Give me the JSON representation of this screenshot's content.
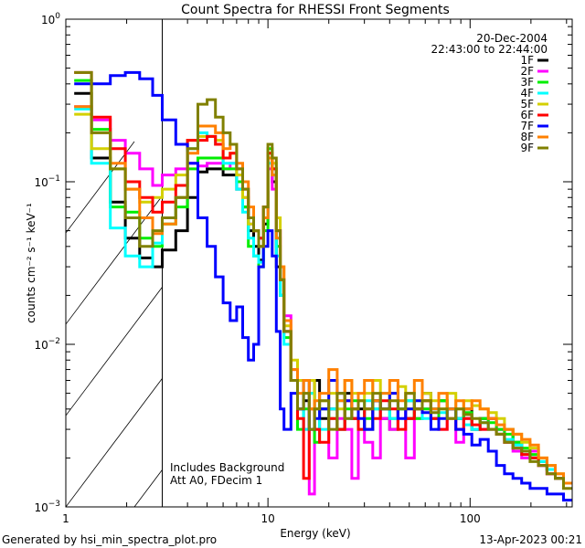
{
  "chart_data": {
    "type": "line",
    "step": true,
    "title": "Count Spectra for RHESSI Front Segments",
    "xlabel": "Energy (keV)",
    "ylabel": "counts cm⁻² s⁻¹ keV⁻¹",
    "xscale": "log",
    "yscale": "log",
    "xlim": [
      1,
      320
    ],
    "ylim": [
      0.001,
      1
    ],
    "x_ticks": [
      {
        "value": 1,
        "label": "1"
      },
      {
        "value": 10,
        "label": "10"
      },
      {
        "value": 100,
        "label": "100"
      }
    ],
    "y_ticks": [
      {
        "value": 1,
        "base": "10",
        "exp": "0"
      },
      {
        "value": 0.1,
        "base": "10",
        "exp": "−1"
      },
      {
        "value": 0.01,
        "base": "10",
        "exp": "−2"
      },
      {
        "value": 0.001,
        "base": "10",
        "exp": "−3"
      }
    ],
    "shaded_region_keV": [
      1,
      3
    ],
    "legend": {
      "placement": "top-right",
      "date": "20-Dec-2004",
      "time_range": "22:43:00 to 22:44:00"
    },
    "annotations": [
      "Includes Background",
      "Att A0, FDecim 1"
    ],
    "bin_edges_keV": [
      1.1,
      1.34,
      1.66,
      1.97,
      2.32,
      2.69,
      3.0,
      3.5,
      4,
      4.5,
      5,
      5.5,
      6,
      6.5,
      7,
      7.5,
      8,
      8.5,
      9,
      9.5,
      10,
      10.5,
      11,
      11.5,
      12,
      13,
      14,
      15,
      16,
      17,
      18,
      20,
      22,
      24,
      26,
      28,
      30,
      33,
      36,
      40,
      44,
      48,
      53,
      58,
      64,
      70,
      77,
      85,
      93,
      102,
      112,
      123,
      135,
      148,
      163,
      180,
      198,
      218,
      240,
      264,
      290,
      320
    ],
    "series": [
      {
        "name": "1F",
        "color": "#000000",
        "values": [
          0.35,
          0.14,
          0.075,
          0.045,
          0.034,
          0.03,
          0.038,
          0.05,
          0.08,
          0.115,
          0.12,
          0.12,
          0.11,
          0.11,
          0.09,
          0.07,
          0.05,
          0.04,
          0.033,
          0.055,
          0.14,
          0.1,
          0.03,
          0.02,
          0.012,
          0.006,
          0.004,
          0.0045,
          0.003,
          0.006,
          0.0035,
          0.004,
          0.003,
          0.005,
          0.0035,
          0.004,
          0.003,
          0.0045,
          0.0035,
          0.003,
          0.004,
          0.0035,
          0.004,
          0.005,
          0.004,
          0.0045,
          0.004,
          0.0035,
          0.004,
          0.003,
          0.0035,
          0.0035,
          0.003,
          0.003,
          0.0025,
          0.0022,
          0.002,
          0.0018,
          0.0017,
          0.0015,
          0.0014
        ]
      },
      {
        "name": "2F",
        "color": "#ff00ff",
        "values": [
          0.29,
          0.24,
          0.18,
          0.15,
          0.12,
          0.095,
          0.11,
          0.12,
          0.13,
          0.125,
          0.13,
          0.13,
          0.12,
          0.13,
          0.11,
          0.08,
          0.055,
          0.05,
          0.045,
          0.06,
          0.12,
          0.09,
          0.05,
          0.025,
          0.015,
          0.007,
          0.004,
          0.003,
          0.0012,
          0.003,
          0.004,
          0.002,
          0.0035,
          0.003,
          0.0015,
          0.003,
          0.0025,
          0.002,
          0.0035,
          0.003,
          0.004,
          0.002,
          0.0035,
          0.004,
          0.0035,
          0.003,
          0.004,
          0.0025,
          0.0035,
          0.003,
          0.003,
          0.0035,
          0.003,
          0.0025,
          0.0022,
          0.002,
          0.0022,
          0.0018,
          0.0016,
          0.0015,
          0.0014
        ]
      },
      {
        "name": "3F",
        "color": "#00ee00",
        "values": [
          0.42,
          0.21,
          0.07,
          0.065,
          0.045,
          0.04,
          0.055,
          0.07,
          0.12,
          0.14,
          0.14,
          0.14,
          0.12,
          0.12,
          0.1,
          0.07,
          0.04,
          0.035,
          0.03,
          0.05,
          0.16,
          0.12,
          0.04,
          0.02,
          0.011,
          0.006,
          0.003,
          0.004,
          0.005,
          0.0025,
          0.004,
          0.0035,
          0.003,
          0.004,
          0.0045,
          0.003,
          0.0035,
          0.004,
          0.004,
          0.0035,
          0.004,
          0.0045,
          0.0035,
          0.004,
          0.0035,
          0.0045,
          0.004,
          0.0035,
          0.0038,
          0.003,
          0.0035,
          0.0033,
          0.003,
          0.0028,
          0.0025,
          0.0023,
          0.0021,
          0.0019,
          0.0017,
          0.0015,
          0.0014
        ]
      },
      {
        "name": "4F",
        "color": "#00ffff",
        "values": [
          0.28,
          0.13,
          0.052,
          0.035,
          0.03,
          0.042,
          0.06,
          0.08,
          0.16,
          0.2,
          0.19,
          0.17,
          0.13,
          0.13,
          0.09,
          0.065,
          0.045,
          0.035,
          0.032,
          0.06,
          0.13,
          0.11,
          0.035,
          0.02,
          0.01,
          0.006,
          0.004,
          0.003,
          0.005,
          0.004,
          0.003,
          0.004,
          0.0045,
          0.0035,
          0.004,
          0.003,
          0.0045,
          0.004,
          0.005,
          0.0035,
          0.004,
          0.0045,
          0.004,
          0.0035,
          0.004,
          0.0038,
          0.004,
          0.0035,
          0.0032,
          0.003,
          0.0033,
          0.003,
          0.0028,
          0.0026,
          0.0024,
          0.0021,
          0.002,
          0.0019,
          0.0017,
          0.0015,
          0.0014
        ]
      },
      {
        "name": "5F",
        "color": "#d4d000",
        "values": [
          0.26,
          0.16,
          0.12,
          0.09,
          0.075,
          0.08,
          0.09,
          0.11,
          0.18,
          0.19,
          0.19,
          0.18,
          0.14,
          0.15,
          0.11,
          0.08,
          0.055,
          0.05,
          0.04,
          0.07,
          0.15,
          0.13,
          0.06,
          0.03,
          0.013,
          0.008,
          0.006,
          0.005,
          0.006,
          0.004,
          0.0045,
          0.005,
          0.004,
          0.006,
          0.005,
          0.0045,
          0.005,
          0.006,
          0.004,
          0.005,
          0.0055,
          0.004,
          0.0045,
          0.005,
          0.0045,
          0.004,
          0.005,
          0.004,
          0.0045,
          0.0042,
          0.004,
          0.0038,
          0.0035,
          0.003,
          0.0028,
          0.0025,
          0.0023,
          0.002,
          0.0018,
          0.0016,
          0.0014
        ]
      },
      {
        "name": "6F",
        "color": "#ff0000",
        "values": [
          0.47,
          0.25,
          0.16,
          0.1,
          0.08,
          0.065,
          0.075,
          0.095,
          0.18,
          0.18,
          0.19,
          0.17,
          0.14,
          0.15,
          0.12,
          0.09,
          0.06,
          0.05,
          0.045,
          0.07,
          0.15,
          0.12,
          0.05,
          0.025,
          0.012,
          0.006,
          0.0035,
          0.0015,
          0.004,
          0.003,
          0.0025,
          0.0035,
          0.003,
          0.0045,
          0.0035,
          0.003,
          0.004,
          0.0035,
          0.0045,
          0.004,
          0.003,
          0.0035,
          0.004,
          0.0045,
          0.0035,
          0.003,
          0.0035,
          0.003,
          0.0035,
          0.0032,
          0.003,
          0.003,
          0.0028,
          0.0025,
          0.0023,
          0.0021,
          0.002,
          0.0018,
          0.0016,
          0.0015,
          0.0014
        ]
      },
      {
        "name": "7F",
        "color": "#0000ff",
        "values": [
          0.4,
          0.4,
          0.45,
          0.47,
          0.43,
          0.34,
          0.24,
          0.17,
          0.13,
          0.06,
          0.04,
          0.026,
          0.018,
          0.014,
          0.017,
          0.011,
          0.008,
          0.01,
          0.03,
          0.04,
          0.05,
          0.035,
          0.012,
          0.004,
          0.003,
          0.005,
          0.004,
          0.006,
          0.003,
          0.0035,
          0.004,
          0.006,
          0.005,
          0.0045,
          0.004,
          0.0035,
          0.003,
          0.0045,
          0.004,
          0.005,
          0.0035,
          0.004,
          0.0045,
          0.0038,
          0.003,
          0.0035,
          0.004,
          0.003,
          0.0028,
          0.0024,
          0.0026,
          0.0022,
          0.0018,
          0.0016,
          0.0015,
          0.0014,
          0.0013,
          0.0013,
          0.0012,
          0.0012,
          0.0011
        ]
      },
      {
        "name": "8F",
        "color": "#ff8000",
        "values": [
          0.29,
          0.2,
          0.13,
          0.09,
          0.06,
          0.048,
          0.055,
          0.08,
          0.15,
          0.22,
          0.22,
          0.2,
          0.16,
          0.17,
          0.13,
          0.1,
          0.07,
          0.05,
          0.04,
          0.06,
          0.14,
          0.11,
          0.045,
          0.03,
          0.014,
          0.007,
          0.005,
          0.006,
          0.004,
          0.0045,
          0.005,
          0.007,
          0.0045,
          0.006,
          0.004,
          0.005,
          0.006,
          0.0045,
          0.005,
          0.006,
          0.0045,
          0.005,
          0.006,
          0.0045,
          0.004,
          0.005,
          0.004,
          0.0045,
          0.004,
          0.0045,
          0.004,
          0.0035,
          0.0032,
          0.003,
          0.0028,
          0.0026,
          0.0024,
          0.002,
          0.0018,
          0.0016,
          0.0014
        ]
      },
      {
        "name": "9F",
        "color": "#808000",
        "values": [
          0.47,
          0.2,
          0.12,
          0.06,
          0.04,
          0.05,
          0.06,
          0.08,
          0.16,
          0.3,
          0.32,
          0.25,
          0.2,
          0.17,
          0.12,
          0.09,
          0.06,
          0.05,
          0.04,
          0.07,
          0.17,
          0.14,
          0.05,
          0.025,
          0.012,
          0.006,
          0.004,
          0.005,
          0.003,
          0.004,
          0.0045,
          0.003,
          0.005,
          0.0035,
          0.004,
          0.0045,
          0.004,
          0.005,
          0.004,
          0.0045,
          0.004,
          0.005,
          0.004,
          0.0045,
          0.0038,
          0.004,
          0.0035,
          0.004,
          0.0037,
          0.0035,
          0.0033,
          0.003,
          0.0028,
          0.0025,
          0.0023,
          0.0022,
          0.0019,
          0.0018,
          0.0016,
          0.0015,
          0.0013
        ]
      }
    ]
  },
  "footer": {
    "generated_by": "Generated by hsi_min_spectra_plot.pro",
    "timestamp": "13-Apr-2023 00:21"
  }
}
